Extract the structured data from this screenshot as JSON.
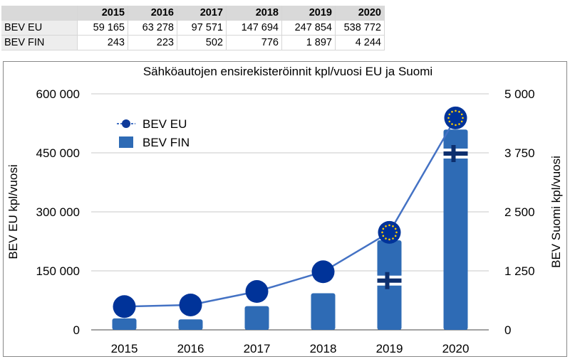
{
  "table": {
    "headers": [
      "",
      "2015",
      "2016",
      "2017",
      "2018",
      "2019",
      "2020"
    ],
    "rows": [
      {
        "label": "BEV EU",
        "values": [
          "59 165",
          "63 278",
          "97 571",
          "147 694",
          "247 854",
          "538 772"
        ]
      },
      {
        "label": "BEV FIN",
        "values": [
          "243",
          "223",
          "502",
          "776",
          "1 897",
          "4 244"
        ]
      }
    ]
  },
  "chart_data": {
    "type": "bar",
    "title": "Sähköautojen ensirekisteröinnit kpl/vuosi EU ja Suomi",
    "categories": [
      "2015",
      "2016",
      "2017",
      "2018",
      "2019",
      "2020"
    ],
    "series": [
      {
        "name": "BEV EU",
        "type": "line",
        "axis": "left",
        "color": "#4472c4",
        "marker_color": "#003399",
        "values": [
          59165,
          63278,
          97571,
          147694,
          247854,
          538772
        ]
      },
      {
        "name": "BEV FIN",
        "type": "bar",
        "axis": "right",
        "color": "#2e6bb5",
        "values": [
          243,
          223,
          502,
          776,
          1897,
          4244
        ]
      }
    ],
    "ylabel_left": "BEV EU kpl/vuosi",
    "ylabel_right": "BEV Suomi kpl/vuosi",
    "ylim_left": [
      0,
      600000
    ],
    "ylim_right": [
      0,
      5000
    ],
    "yticks_left": [
      "0",
      "150 000",
      "300 000",
      "450 000",
      "600 000"
    ],
    "yticks_right": [
      "0",
      "1 250",
      "2 500",
      "3 750",
      "5 000"
    ],
    "legend_position": "top-left",
    "grid": true
  }
}
